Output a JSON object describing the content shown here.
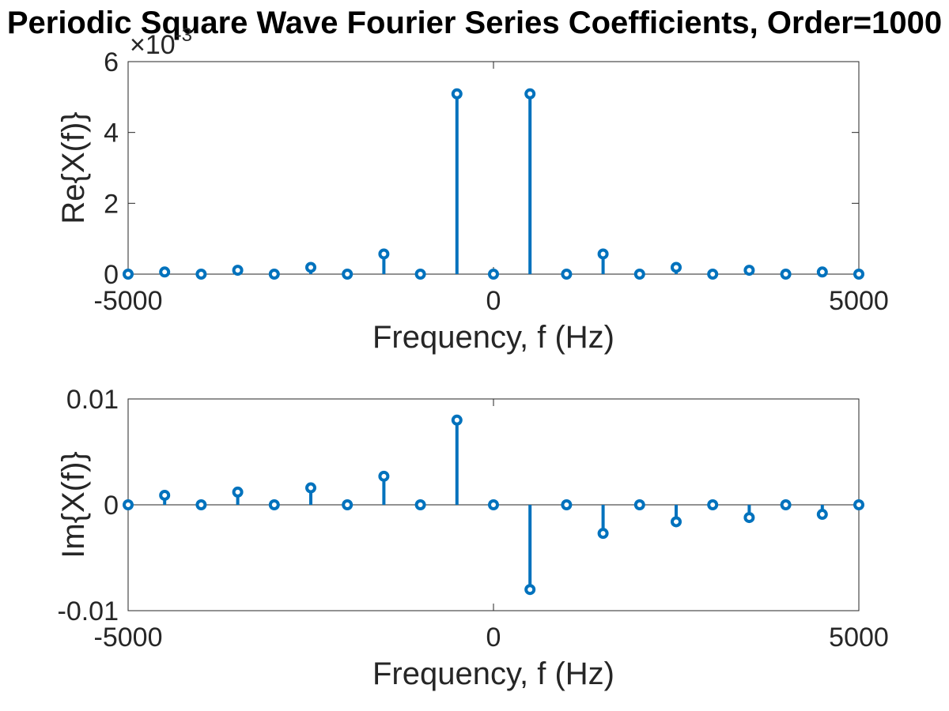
{
  "figure": {
    "title": "Periodic Square Wave Fourier Series Coefficients, Order=1000",
    "accent_color": "#0072BD"
  },
  "chart_data": [
    {
      "type": "stem",
      "xlabel": "Frequency, f (Hz)",
      "ylabel": "Re{X(f)}",
      "xlim": [
        -5000,
        5000
      ],
      "ylim": [
        0,
        0.006
      ],
      "x_ticks": [
        -5000,
        0,
        5000
      ],
      "x_tick_labels": [
        "-5000",
        "0",
        "5000"
      ],
      "y_ticks": [
        0,
        0.002,
        0.004,
        0.006
      ],
      "y_tick_labels": [
        "0",
        "2",
        "4",
        "6"
      ],
      "exponent_label": "×10",
      "exponent_power": "-3",
      "x": [
        -5000,
        -4500,
        -4000,
        -3500,
        -3000,
        -2500,
        -2000,
        -1500,
        -1000,
        -500,
        0,
        500,
        1000,
        1500,
        2000,
        2500,
        3000,
        3500,
        4000,
        4500,
        5000
      ],
      "y": [
        0,
        6e-05,
        0,
        0.00011,
        0,
        0.00019,
        0,
        0.00057,
        0,
        0.00509,
        0,
        0.00509,
        0,
        0.00057,
        0,
        0.00019,
        0,
        0.00011,
        0,
        6e-05,
        0
      ]
    },
    {
      "type": "stem",
      "xlabel": "Frequency, f (Hz)",
      "ylabel": "Im{X(f)}",
      "xlim": [
        -5000,
        5000
      ],
      "ylim": [
        -0.01,
        0.01
      ],
      "x_ticks": [
        -5000,
        0,
        5000
      ],
      "x_tick_labels": [
        "-5000",
        "0",
        "5000"
      ],
      "y_ticks": [
        -0.01,
        0,
        0.01
      ],
      "y_tick_labels": [
        "-0.01",
        "0",
        "0.01"
      ],
      "x": [
        -5000,
        -4500,
        -4000,
        -3500,
        -3000,
        -2500,
        -2000,
        -1500,
        -1000,
        -500,
        0,
        500,
        1000,
        1500,
        2000,
        2500,
        3000,
        3500,
        4000,
        4500,
        5000
      ],
      "y": [
        0,
        0.0009,
        0,
        0.0012,
        0,
        0.0016,
        0,
        0.0027,
        0,
        0.008,
        0,
        -0.008,
        0,
        -0.0027,
        0,
        -0.0016,
        0,
        -0.0012,
        0,
        -0.0009,
        0
      ]
    }
  ]
}
